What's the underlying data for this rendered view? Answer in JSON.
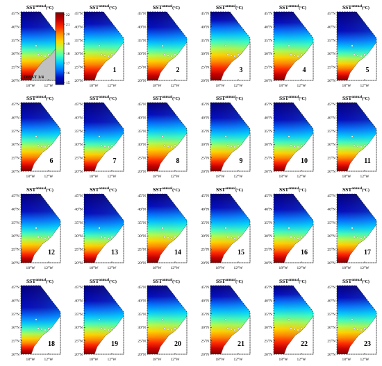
{
  "figure": {
    "panel_title": "SST",
    "panel_title_sup": "annual",
    "panel_title_unit": "(°C)",
    "lat_ticks": [
      "45°N",
      "40°N",
      "35°N",
      "30°N",
      "25°N",
      "20°N"
    ],
    "lon_ticks": [
      "18°W",
      "12°W"
    ],
    "colorbar_ticks": [
      "22",
      "21",
      "20",
      "19",
      "18",
      "17",
      "16",
      "15"
    ],
    "colorbar_colors": [
      "#7f0000",
      "#c40000",
      "#ff2a00",
      "#ff8c00",
      "#ffd700",
      "#b0ff4f",
      "#3fffbf",
      "#00c8ff",
      "#0070ff",
      "#0010c0",
      "#000080"
    ],
    "land_color": "#c0c0c0",
    "reference_label": "OISST 1/4",
    "panels": [
      {
        "label": "",
        "warmth": 0.45,
        "reference": true
      },
      {
        "label": "1",
        "warmth": 0.35
      },
      {
        "label": "2",
        "warmth": 0.45
      },
      {
        "label": "3",
        "warmth": 0.2
      },
      {
        "label": "4",
        "warmth": 0.3
      },
      {
        "label": "5",
        "warmth": 0.55
      },
      {
        "label": "6",
        "warmth": 0.45
      },
      {
        "label": "7",
        "warmth": 0.55
      },
      {
        "label": "8",
        "warmth": 0.35
      },
      {
        "label": "9",
        "warmth": 0.45
      },
      {
        "label": "10",
        "warmth": 0.5
      },
      {
        "label": "11",
        "warmth": 0.5
      },
      {
        "label": "12",
        "warmth": 0.5
      },
      {
        "label": "13",
        "warmth": 0.55
      },
      {
        "label": "14",
        "warmth": 0.35
      },
      {
        "label": "15",
        "warmth": 0.4
      },
      {
        "label": "16",
        "warmth": 0.45
      },
      {
        "label": "17",
        "warmth": 0.5
      },
      {
        "label": "18",
        "warmth": 0.6
      },
      {
        "label": "19",
        "warmth": 0.45
      },
      {
        "label": "20",
        "warmth": 0.3
      },
      {
        "label": "21",
        "warmth": 0.3
      },
      {
        "label": "22",
        "warmth": 0.2
      },
      {
        "label": "23",
        "warmth": 0.35
      }
    ]
  }
}
